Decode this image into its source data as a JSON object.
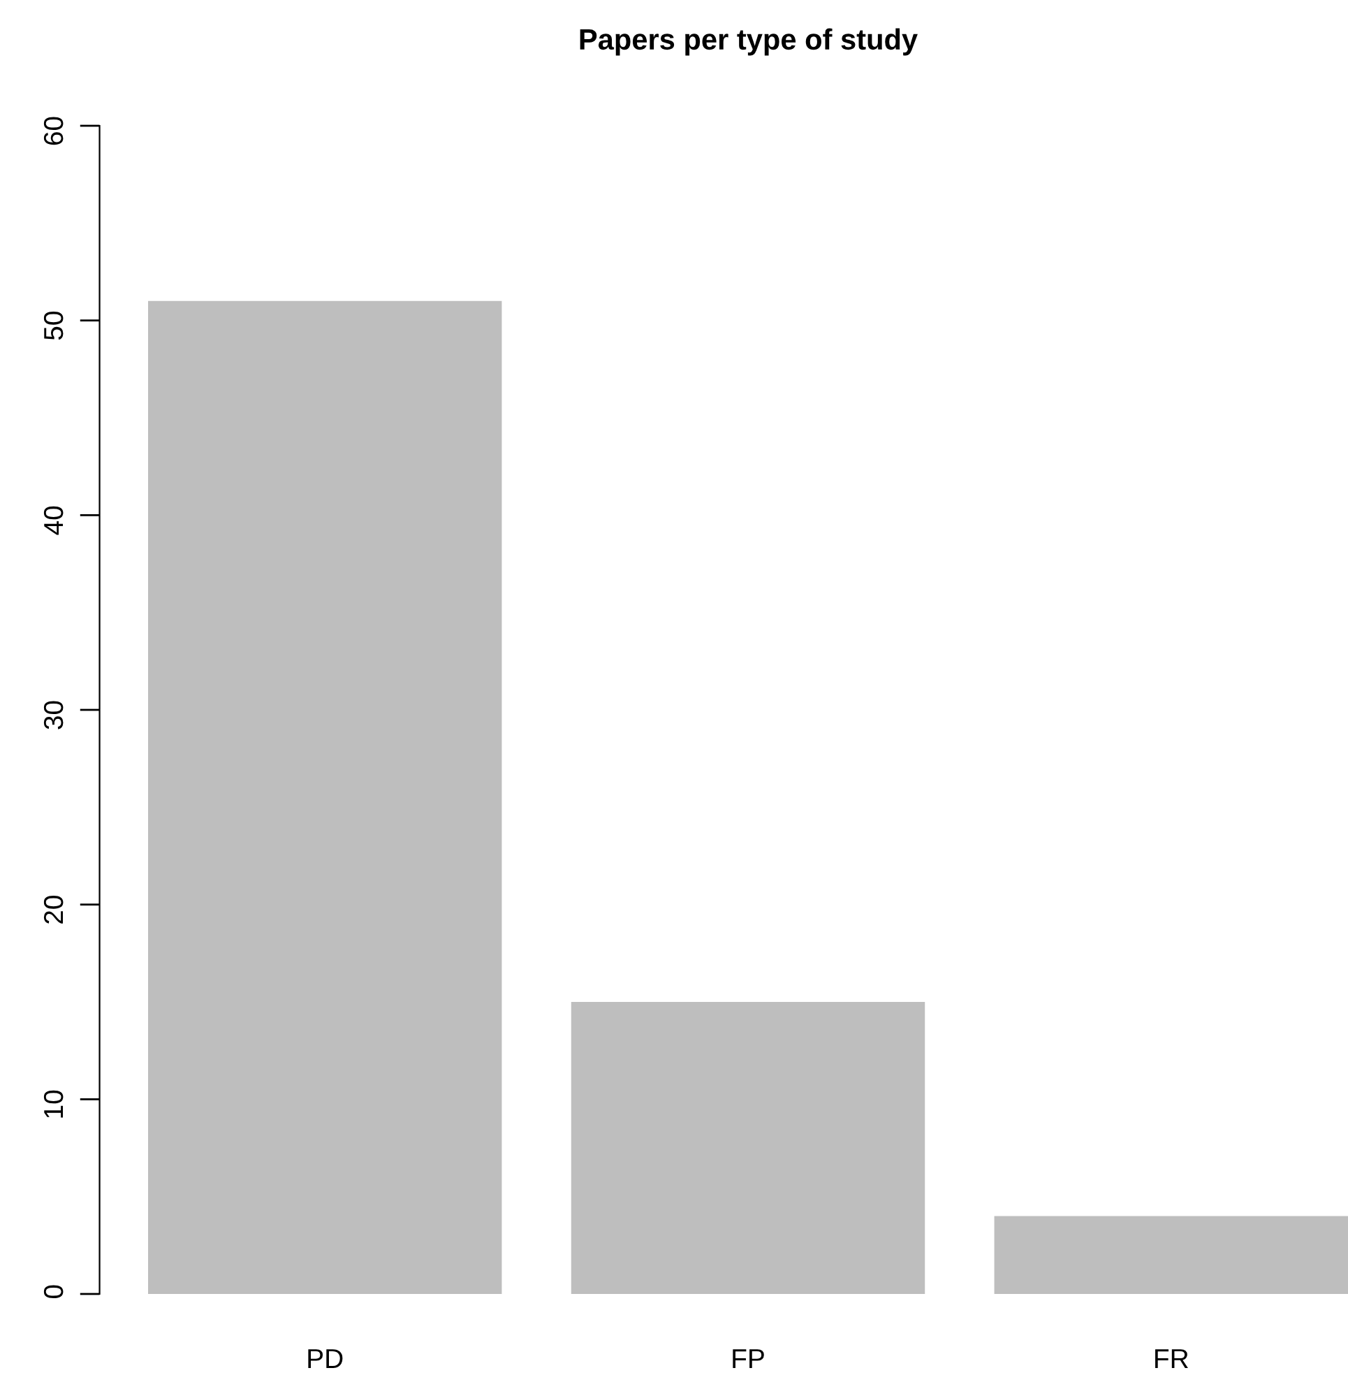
{
  "chart_data": {
    "type": "bar",
    "title": "Papers per type of study",
    "categories": [
      "PD",
      "FP",
      "FR"
    ],
    "values": [
      51,
      15,
      4
    ],
    "color": "#bebebe",
    "ylim": [
      0,
      60
    ],
    "yticks": [
      0,
      10,
      20,
      30,
      40,
      50,
      60
    ],
    "grid": false,
    "legend": false
  }
}
